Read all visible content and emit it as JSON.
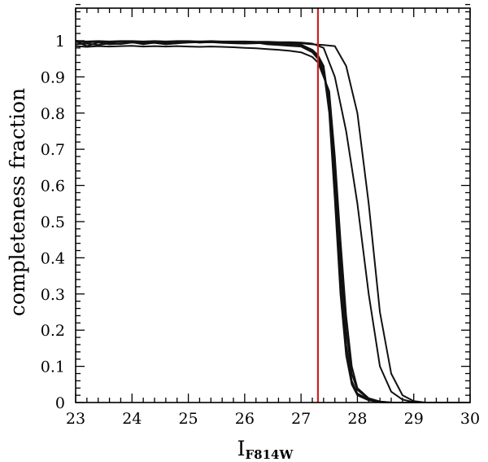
{
  "chart_data": {
    "type": "line",
    "title": "",
    "xlabel": {
      "main": "I",
      "sub": "F814W"
    },
    "ylabel": "completeness fraction",
    "xlim": [
      23,
      30
    ],
    "ylim": [
      0,
      1.09
    ],
    "xticks": [
      23,
      24,
      25,
      26,
      27,
      28,
      29,
      30
    ],
    "yticks": [
      0,
      0.1,
      0.2,
      0.3,
      0.4,
      0.5,
      0.6,
      0.7,
      0.8,
      0.9,
      1
    ],
    "x_minor_step": 0.2,
    "y_minor_step": 0.02,
    "vline": {
      "x": 27.3,
      "color": "#cc2222"
    },
    "series": [
      {
        "points": [
          [
            23,
            0.998
          ],
          [
            23.2,
            0.985
          ],
          [
            23.4,
            0.995
          ],
          [
            23.6,
            0.99
          ],
          [
            23.8,
            0.992
          ],
          [
            24,
            0.996
          ],
          [
            24.2,
            0.99
          ],
          [
            24.4,
            0.995
          ],
          [
            24.6,
            0.991
          ],
          [
            24.8,
            0.993
          ],
          [
            25,
            0.997
          ],
          [
            25.2,
            0.995
          ],
          [
            25.4,
            0.996
          ],
          [
            25.6,
            0.994
          ],
          [
            25.8,
            0.993
          ],
          [
            26,
            0.992
          ],
          [
            26.2,
            0.993
          ],
          [
            26.4,
            0.994
          ],
          [
            26.6,
            0.992
          ],
          [
            26.8,
            0.99
          ],
          [
            27,
            0.989
          ],
          [
            27.2,
            0.975
          ],
          [
            27.3,
            0.96
          ],
          [
            27.4,
            0.93
          ],
          [
            27.5,
            0.82
          ],
          [
            27.6,
            0.6
          ],
          [
            27.7,
            0.35
          ],
          [
            27.8,
            0.16
          ],
          [
            27.9,
            0.06
          ],
          [
            28,
            0.025
          ],
          [
            28.2,
            0.008
          ],
          [
            28.4,
            0.002
          ],
          [
            28.6,
            0
          ],
          [
            30,
            0
          ]
        ]
      },
      {
        "points": [
          [
            23,
            1
          ],
          [
            23.2,
            0.997
          ],
          [
            23.4,
            0.998
          ],
          [
            23.6,
            0.996
          ],
          [
            23.8,
            0.997
          ],
          [
            24,
            0.998
          ],
          [
            24.2,
            0.996
          ],
          [
            24.4,
            0.997
          ],
          [
            24.6,
            0.995
          ],
          [
            24.8,
            0.996
          ],
          [
            25,
            0.997
          ],
          [
            25.2,
            0.995
          ],
          [
            25.4,
            0.996
          ],
          [
            25.6,
            0.995
          ],
          [
            25.8,
            0.994
          ],
          [
            26,
            0.993
          ],
          [
            26.2,
            0.994
          ],
          [
            26.4,
            0.993
          ],
          [
            26.6,
            0.991
          ],
          [
            26.8,
            0.99
          ],
          [
            27,
            0.988
          ],
          [
            27.2,
            0.97
          ],
          [
            27.3,
            0.955
          ],
          [
            27.4,
            0.92
          ],
          [
            27.5,
            0.8
          ],
          [
            27.6,
            0.56
          ],
          [
            27.7,
            0.3
          ],
          [
            27.8,
            0.13
          ],
          [
            27.9,
            0.05
          ],
          [
            28,
            0.02
          ],
          [
            28.2,
            0.006
          ],
          [
            28.4,
            0.001
          ],
          [
            28.6,
            0
          ],
          [
            30,
            0
          ]
        ]
      },
      {
        "points": [
          [
            23,
            0.99
          ],
          [
            23.2,
            0.992
          ],
          [
            23.4,
            0.988
          ],
          [
            23.6,
            0.993
          ],
          [
            23.8,
            0.991
          ],
          [
            24,
            0.995
          ],
          [
            24.2,
            0.992
          ],
          [
            24.4,
            0.994
          ],
          [
            24.6,
            0.99
          ],
          [
            24.8,
            0.993
          ],
          [
            25,
            0.995
          ],
          [
            25.2,
            0.996
          ],
          [
            25.4,
            0.997
          ],
          [
            25.6,
            0.995
          ],
          [
            25.8,
            0.996
          ],
          [
            26,
            0.993
          ],
          [
            26.2,
            0.995
          ],
          [
            26.4,
            0.99
          ],
          [
            26.6,
            0.988
          ],
          [
            26.8,
            0.986
          ],
          [
            27,
            0.984
          ],
          [
            27.2,
            0.968
          ],
          [
            27.3,
            0.95
          ],
          [
            27.4,
            0.91
          ],
          [
            27.5,
            0.84
          ],
          [
            27.6,
            0.65
          ],
          [
            27.7,
            0.4
          ],
          [
            27.8,
            0.2
          ],
          [
            27.9,
            0.08
          ],
          [
            28,
            0.035
          ],
          [
            28.2,
            0.01
          ],
          [
            28.4,
            0.003
          ],
          [
            28.6,
            0
          ],
          [
            30,
            0
          ]
        ]
      },
      {
        "points": [
          [
            23,
            0.985
          ],
          [
            23.2,
            0.983
          ],
          [
            23.4,
            0.985
          ],
          [
            23.6,
            0.984
          ],
          [
            23.8,
            0.985
          ],
          [
            24,
            0.986
          ],
          [
            24.2,
            0.984
          ],
          [
            24.4,
            0.985
          ],
          [
            24.6,
            0.984
          ],
          [
            24.8,
            0.985
          ],
          [
            25,
            0.984
          ],
          [
            25.2,
            0.983
          ],
          [
            25.4,
            0.984
          ],
          [
            25.6,
            0.983
          ],
          [
            25.8,
            0.982
          ],
          [
            26,
            0.98
          ],
          [
            26.2,
            0.979
          ],
          [
            26.4,
            0.977
          ],
          [
            26.6,
            0.975
          ],
          [
            26.8,
            0.972
          ],
          [
            27,
            0.968
          ],
          [
            27.2,
            0.955
          ],
          [
            27.3,
            0.94
          ],
          [
            27.4,
            0.9
          ],
          [
            27.5,
            0.86
          ],
          [
            27.6,
            0.68
          ],
          [
            27.7,
            0.45
          ],
          [
            27.8,
            0.24
          ],
          [
            27.9,
            0.1
          ],
          [
            28,
            0.04
          ],
          [
            28.2,
            0.012
          ],
          [
            28.4,
            0.003
          ],
          [
            28.6,
            0
          ],
          [
            30,
            0
          ]
        ]
      },
      {
        "points": [
          [
            23,
            0.998
          ],
          [
            23.2,
            0.995
          ],
          [
            23.4,
            0.997
          ],
          [
            23.6,
            0.996
          ],
          [
            23.8,
            0.997
          ],
          [
            24,
            0.998
          ],
          [
            24.2,
            0.997
          ],
          [
            24.4,
            0.996
          ],
          [
            24.6,
            0.997
          ],
          [
            24.8,
            0.996
          ],
          [
            25,
            0.997
          ],
          [
            25.2,
            0.998
          ],
          [
            25.4,
            0.997
          ],
          [
            25.6,
            0.996
          ],
          [
            25.8,
            0.997
          ],
          [
            26,
            0.996
          ],
          [
            26.2,
            0.995
          ],
          [
            26.4,
            0.995
          ],
          [
            26.6,
            0.994
          ],
          [
            26.8,
            0.994
          ],
          [
            27,
            0.993
          ],
          [
            27.2,
            0.99
          ],
          [
            27.4,
            0.988
          ],
          [
            27.6,
            0.985
          ],
          [
            27.8,
            0.93
          ],
          [
            28,
            0.8
          ],
          [
            28.2,
            0.55
          ],
          [
            28.4,
            0.25
          ],
          [
            28.6,
            0.08
          ],
          [
            28.8,
            0.02
          ],
          [
            29,
            0.004
          ],
          [
            29.2,
            0
          ],
          [
            30,
            0
          ]
        ]
      },
      {
        "points": [
          [
            23,
            0.999
          ],
          [
            23.2,
            0.998
          ],
          [
            23.4,
            0.999
          ],
          [
            23.6,
            0.998
          ],
          [
            23.8,
            0.999
          ],
          [
            24,
            0.999
          ],
          [
            24.2,
            0.998
          ],
          [
            24.4,
            0.999
          ],
          [
            24.6,
            0.998
          ],
          [
            24.8,
            0.999
          ],
          [
            25,
            0.999
          ],
          [
            25.2,
            0.998
          ],
          [
            25.4,
            0.999
          ],
          [
            25.6,
            0.998
          ],
          [
            25.8,
            0.998
          ],
          [
            26,
            0.998
          ],
          [
            26.2,
            0.997
          ],
          [
            26.4,
            0.997
          ],
          [
            26.6,
            0.996
          ],
          [
            26.8,
            0.996
          ],
          [
            27,
            0.995
          ],
          [
            27.2,
            0.992
          ],
          [
            27.4,
            0.98
          ],
          [
            27.6,
            0.9
          ],
          [
            27.8,
            0.75
          ],
          [
            28,
            0.55
          ],
          [
            28.2,
            0.3
          ],
          [
            28.4,
            0.1
          ],
          [
            28.6,
            0.03
          ],
          [
            28.8,
            0.008
          ],
          [
            29,
            0.001
          ],
          [
            29.2,
            0
          ],
          [
            30,
            0
          ]
        ]
      }
    ]
  }
}
